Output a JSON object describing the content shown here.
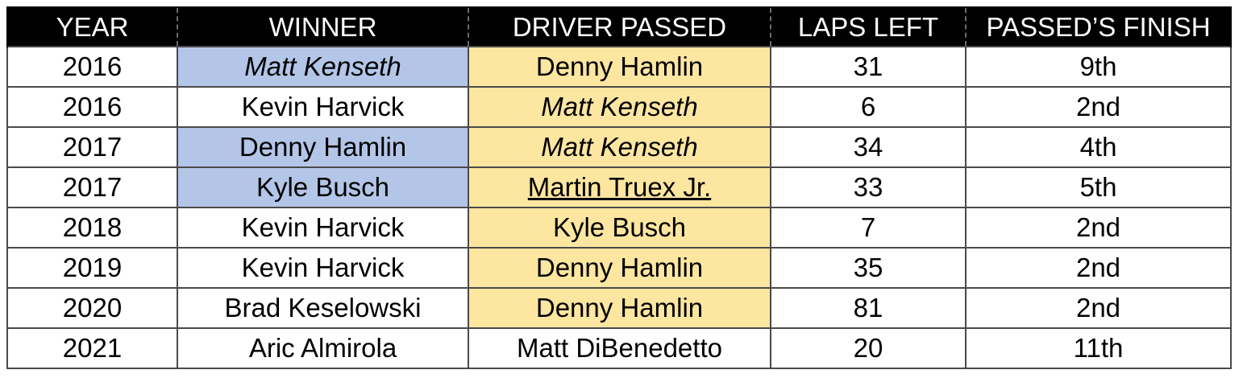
{
  "colors": {
    "header_bg": "#000000",
    "header_text": "#ffffff",
    "winner_highlight": "#b4c6e7",
    "passed_highlight": "#fde6a0"
  },
  "table": {
    "headers": [
      "YEAR",
      "WINNER",
      "DRIVER PASSED",
      "LAPS LEFT",
      "PASSED’S FINISH"
    ],
    "rows": [
      {
        "year": "2016",
        "winner": "Matt Kenseth",
        "winner_style": "italic",
        "winner_highlight": true,
        "driver_passed": "Denny Hamlin",
        "passed_style": "normal",
        "passed_highlight": true,
        "laps_left": "31",
        "passed_finish": "9th"
      },
      {
        "year": "2016",
        "winner": "Kevin Harvick",
        "winner_style": "normal",
        "winner_highlight": false,
        "driver_passed": "Matt Kenseth",
        "passed_style": "italic",
        "passed_highlight": true,
        "laps_left": "6",
        "passed_finish": "2nd"
      },
      {
        "year": "2017",
        "winner": "Denny Hamlin",
        "winner_style": "normal",
        "winner_highlight": true,
        "driver_passed": "Matt Kenseth",
        "passed_style": "italic",
        "passed_highlight": true,
        "laps_left": "34",
        "passed_finish": "4th"
      },
      {
        "year": "2017",
        "winner": "Kyle Busch",
        "winner_style": "normal",
        "winner_highlight": true,
        "driver_passed": "Martin Truex Jr.",
        "passed_style": "underline",
        "passed_highlight": true,
        "laps_left": "33",
        "passed_finish": "5th"
      },
      {
        "year": "2018",
        "winner": "Kevin Harvick",
        "winner_style": "normal",
        "winner_highlight": false,
        "driver_passed": "Kyle Busch",
        "passed_style": "normal",
        "passed_highlight": true,
        "laps_left": "7",
        "passed_finish": "2nd"
      },
      {
        "year": "2019",
        "winner": "Kevin Harvick",
        "winner_style": "normal",
        "winner_highlight": false,
        "driver_passed": "Denny Hamlin",
        "passed_style": "normal",
        "passed_highlight": true,
        "laps_left": "35",
        "passed_finish": "2nd"
      },
      {
        "year": "2020",
        "winner": "Brad Keselowski",
        "winner_style": "normal",
        "winner_highlight": false,
        "driver_passed": "Denny Hamlin",
        "passed_style": "normal",
        "passed_highlight": true,
        "laps_left": "81",
        "passed_finish": "2nd"
      },
      {
        "year": "2021",
        "winner": "Aric Almirola",
        "winner_style": "normal",
        "winner_highlight": false,
        "driver_passed": "Matt DiBenedetto",
        "passed_style": "normal",
        "passed_highlight": false,
        "laps_left": "20",
        "passed_finish": "11th"
      }
    ]
  }
}
